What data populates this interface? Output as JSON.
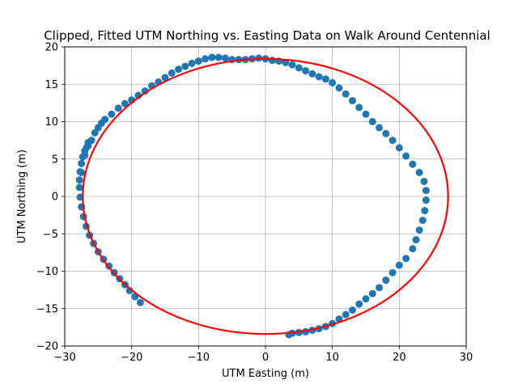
{
  "chart_data": {
    "type": "scatter",
    "title": "Clipped, Fitted UTM Northing vs. Easting Data on Walk Around Centennial",
    "xlabel": "UTM Easting (m)",
    "ylabel": "UTM Northing (m)",
    "xlim": [
      -30,
      30
    ],
    "ylim": [
      -20,
      20
    ],
    "xticks": [
      -30,
      -20,
      -10,
      0,
      10,
      20,
      30
    ],
    "yticks": [
      -20,
      -15,
      -10,
      -5,
      0,
      5,
      10,
      15,
      20
    ],
    "grid": true,
    "colors": {
      "points": "#1f77b4",
      "fit": "#ff0000",
      "grid": "#b0b0b0"
    },
    "series": [
      {
        "kind": "points",
        "x": [
          -27.5,
          -27.0,
          -26.5,
          -26.0,
          -25.5,
          -25.0,
          -24.5,
          -24.0,
          -23.0,
          -22.0,
          -21.0,
          -20.0,
          -19.0,
          -18.0,
          -17.0,
          -16.0,
          -15.0,
          -14.0,
          -13.0,
          -12.0,
          -11.0,
          -10.0,
          -9.0,
          -8.0,
          -7.0,
          -6.0,
          -5.0,
          -4.0,
          -3.0,
          -2.0,
          -1.0,
          0.0,
          1.0,
          2.0,
          3.0,
          4.0,
          5.0,
          6.0,
          7.0,
          8.0,
          9.0,
          10.0,
          11.0,
          12.0,
          13.0,
          14.0,
          15.0,
          16.0,
          17.0,
          18.0,
          19.0,
          20.0,
          21.0,
          22.0,
          23.0,
          23.7,
          24.0,
          24.0,
          23.8,
          23.5,
          23.0,
          22.5,
          22.0,
          21.0,
          20.0,
          19.0,
          18.0,
          17.0,
          16.0,
          15.0,
          14.0,
          13.0,
          12.0,
          11.0,
          10.0,
          9.0,
          8.0,
          7.0,
          6.0,
          5.0,
          4.0,
          3.5,
          -18.7,
          -19.5,
          -20.3,
          -21.0,
          -21.8,
          -22.6,
          -23.4,
          -24.2,
          -25.0,
          -25.7,
          -26.3,
          -26.8,
          -27.2,
          -27.5,
          -27.7,
          -27.8,
          -27.8,
          -27.7,
          -27.5,
          -27.3,
          -27.0,
          -26.7,
          -26.5
        ],
        "y": [
          3.2,
          5.5,
          6.8,
          7.5,
          8.5,
          9.2,
          9.8,
          10.3,
          11.0,
          11.8,
          12.4,
          12.9,
          13.5,
          14.1,
          14.8,
          15.3,
          15.9,
          16.5,
          17.0,
          17.4,
          17.8,
          18.1,
          18.4,
          18.6,
          18.6,
          18.5,
          18.3,
          18.3,
          18.3,
          18.4,
          18.5,
          18.4,
          18.2,
          18.1,
          17.9,
          17.6,
          17.2,
          16.8,
          16.4,
          16.0,
          15.7,
          15.2,
          14.5,
          13.7,
          12.8,
          11.9,
          11.0,
          10.0,
          9.2,
          8.4,
          7.5,
          6.5,
          5.4,
          4.3,
          3.2,
          2.0,
          0.8,
          -0.5,
          -1.9,
          -3.2,
          -4.5,
          -5.8,
          -7.0,
          -8.3,
          -9.2,
          -10.2,
          -11.2,
          -12.2,
          -13.0,
          -13.7,
          -14.4,
          -15.2,
          -15.8,
          -16.4,
          -17.0,
          -17.4,
          -17.7,
          -17.9,
          -18.1,
          -18.2,
          -18.3,
          -18.5,
          -14.2,
          -13.4,
          -12.6,
          -11.8,
          -11.0,
          -10.2,
          -9.3,
          -8.4,
          -7.4,
          -6.3,
          -5.2,
          -4.0,
          -2.7,
          -1.4,
          -0.1,
          1.2,
          2.2,
          3.3,
          4.4,
          5.3,
          6.1,
          6.6,
          7.2
        ]
      },
      {
        "kind": "fit-ellipse",
        "center": [
          0,
          0
        ],
        "semi_axis_x": 27.3,
        "semi_axis_y": 18.4
      }
    ]
  }
}
